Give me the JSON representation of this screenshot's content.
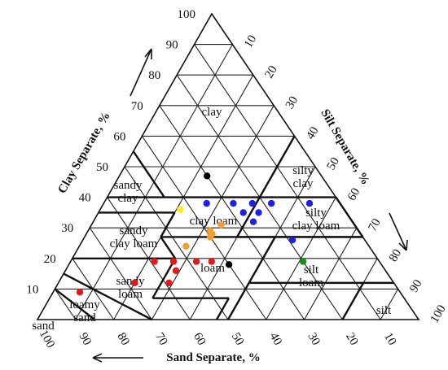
{
  "chart_data": {
    "type": "scatter",
    "subtype": "soil-texture-triangle",
    "axes": {
      "clay": {
        "title": "Clay Separate, %",
        "ticks": [
          "10",
          "20",
          "30",
          "40",
          "50",
          "60",
          "70",
          "80",
          "90",
          "100"
        ]
      },
      "silt": {
        "title": "Silt Separate, %",
        "ticks": [
          "10",
          "20",
          "30",
          "40",
          "50",
          "60",
          "70",
          "80",
          "90",
          "100"
        ]
      },
      "sand": {
        "title": "Sand Separate, %",
        "ticks": [
          "10",
          "20",
          "30",
          "40",
          "50",
          "60",
          "70",
          "80",
          "90",
          "100"
        ]
      }
    },
    "grid": true,
    "texture_classes": [
      {
        "id": "clay",
        "lines": [
          "clay"
        ]
      },
      {
        "id": "sandy-clay",
        "lines": [
          "sandy",
          "clay"
        ]
      },
      {
        "id": "silty-clay",
        "lines": [
          "silty",
          "clay"
        ]
      },
      {
        "id": "clay-loam",
        "lines": [
          "clay loam"
        ]
      },
      {
        "id": "silty-clay-loam",
        "lines": [
          "silty",
          "clay loam"
        ]
      },
      {
        "id": "sandy-clay-loam",
        "lines": [
          "sandy",
          "clay loam"
        ]
      },
      {
        "id": "loam",
        "lines": [
          "loam"
        ]
      },
      {
        "id": "silt-loam",
        "lines": [
          "silt",
          "loam"
        ]
      },
      {
        "id": "sandy-loam",
        "lines": [
          "sandy",
          "loam"
        ]
      },
      {
        "id": "loamy-sand",
        "lines": [
          "loamy",
          "sand"
        ]
      },
      {
        "id": "sand",
        "lines": [
          "sand"
        ]
      },
      {
        "id": "silt",
        "lines": [
          "silt"
        ]
      }
    ],
    "series": [
      {
        "color": "#000000",
        "points": [
          {
            "sand": 30,
            "silt": 23,
            "clay": 47
          },
          {
            "sand": 40,
            "silt": 42,
            "clay": 18
          }
        ]
      },
      {
        "color": "#1f1fe6",
        "points": [
          {
            "sand": 35,
            "silt": 27,
            "clay": 38
          },
          {
            "sand": 28,
            "silt": 34,
            "clay": 38
          },
          {
            "sand": 23,
            "silt": 39,
            "clay": 38
          },
          {
            "sand": 18,
            "silt": 44,
            "clay": 38
          },
          {
            "sand": 8,
            "silt": 54,
            "clay": 38
          },
          {
            "sand": 27,
            "silt": 38,
            "clay": 35
          },
          {
            "sand": 23,
            "silt": 42,
            "clay": 35
          },
          {
            "sand": 26,
            "silt": 42,
            "clay": 32
          },
          {
            "sand": 19,
            "silt": 55,
            "clay": 26
          }
        ]
      },
      {
        "color": "#f2ee2a",
        "points": [
          {
            "sand": 43,
            "silt": 21,
            "clay": 36
          }
        ]
      },
      {
        "color": "#f0a030",
        "points": [
          {
            "sand": 35,
            "silt": 34,
            "clay": 31
          },
          {
            "sand": 39,
            "silt": 32,
            "clay": 29
          },
          {
            "sand": 39,
            "silt": 33,
            "clay": 28
          },
          {
            "sand": 40,
            "silt": 33,
            "clay": 27
          },
          {
            "sand": 48,
            "silt": 28,
            "clay": 24
          }
        ]
      },
      {
        "color": "#e01a1a",
        "points": [
          {
            "sand": 59,
            "silt": 22,
            "clay": 19
          },
          {
            "sand": 54,
            "silt": 27,
            "clay": 19
          },
          {
            "sand": 48,
            "silt": 33,
            "clay": 19
          },
          {
            "sand": 44,
            "silt": 37,
            "clay": 19
          },
          {
            "sand": 55,
            "silt": 29,
            "clay": 16
          },
          {
            "sand": 59,
            "silt": 29,
            "clay": 12
          },
          {
            "sand": 68,
            "silt": 20,
            "clay": 12
          },
          {
            "sand": 84,
            "silt": 7,
            "clay": 9
          }
        ]
      },
      {
        "color": "#1e8a1e",
        "points": [
          {
            "sand": 20,
            "silt": 61,
            "clay": 19
          }
        ]
      }
    ]
  }
}
